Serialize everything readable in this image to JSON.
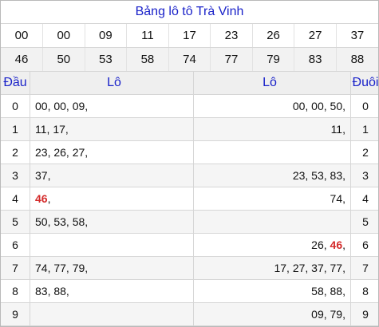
{
  "title": "Bảng lô tô Trà Vinh",
  "numbers_row1": [
    "00",
    "00",
    "09",
    "11",
    "17",
    "23",
    "26",
    "27",
    "37"
  ],
  "numbers_row2": [
    "46",
    "50",
    "53",
    "58",
    "74",
    "77",
    "79",
    "83",
    "88"
  ],
  "highlight_number": "46",
  "colors": {
    "title_blue": "#1a22c9",
    "highlight_red": "#d42b2b"
  },
  "header": {
    "dau": "Đầu",
    "lo_left": "Lô",
    "lo_right": "Lô",
    "duoi": "Đuôi"
  },
  "rows": [
    {
      "dau": "0",
      "left": "00, 00, 09,",
      "right": "00, 00, 50,",
      "duoi": "0"
    },
    {
      "dau": "1",
      "left": "11, 17,",
      "right": "11,",
      "duoi": "1"
    },
    {
      "dau": "2",
      "left": "23, 26, 27,",
      "right": "",
      "duoi": "2"
    },
    {
      "dau": "3",
      "left": "37,",
      "right": "23, 53, 83,",
      "duoi": "3"
    },
    {
      "dau": "4",
      "left_bold": "46",
      "left_rest": ",",
      "right": "74,",
      "duoi": "4"
    },
    {
      "dau": "5",
      "left": "50, 53, 58,",
      "right": "",
      "duoi": "5"
    },
    {
      "dau": "6",
      "left": "",
      "right_pre": "26, ",
      "right_bold": "46",
      "right_rest": ",",
      "duoi": "6"
    },
    {
      "dau": "7",
      "left": "74, 77, 79,",
      "right": "17, 27, 37, 77,",
      "duoi": "7"
    },
    {
      "dau": "8",
      "left": "83, 88,",
      "right": "58, 88,",
      "duoi": "8"
    },
    {
      "dau": "9",
      "left": "",
      "right": "09, 79,",
      "duoi": "9"
    }
  ]
}
